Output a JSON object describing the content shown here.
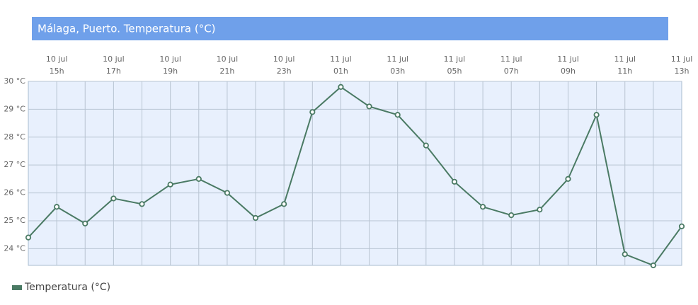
{
  "chart_data": {
    "type": "line",
    "title": "Málaga, Puerto. Temperatura (°C)",
    "categories": [
      null,
      [
        "10 jul",
        "15h"
      ],
      null,
      [
        "10 jul",
        "17h"
      ],
      null,
      [
        "10 jul",
        "19h"
      ],
      null,
      [
        "10 jul",
        "21h"
      ],
      null,
      [
        "10 jul",
        "23h"
      ],
      null,
      [
        "11 jul",
        "01h"
      ],
      null,
      [
        "11 jul",
        "03h"
      ],
      null,
      [
        "11 jul",
        "05h"
      ],
      null,
      [
        "11 jul",
        "07h"
      ],
      null,
      [
        "11 jul",
        "09h"
      ],
      null,
      [
        "11 jul",
        "11h"
      ],
      null,
      [
        "11 jul",
        "13h"
      ]
    ],
    "series": [
      {
        "name": "Temperatura (°C)",
        "color": "#4a7a64",
        "values": [
          24.4,
          25.5,
          24.9,
          25.8,
          25.6,
          26.3,
          26.5,
          26.0,
          25.1,
          25.6,
          28.9,
          29.8,
          29.1,
          28.8,
          27.7,
          26.4,
          25.5,
          25.2,
          25.4,
          26.5,
          28.8,
          23.8,
          23.4,
          24.8
        ]
      }
    ],
    "ylim": [
      23.4,
      30
    ],
    "yticks": [
      {
        "value": 24,
        "label": "24 °C"
      },
      {
        "value": 25,
        "label": "25 °C"
      },
      {
        "value": 26,
        "label": "26 °C"
      },
      {
        "value": 27,
        "label": "27 °C"
      },
      {
        "value": 28,
        "label": "28 °C"
      },
      {
        "value": 29,
        "label": "29 °C"
      },
      {
        "value": 30,
        "label": "30 °C"
      }
    ],
    "grid": true
  }
}
